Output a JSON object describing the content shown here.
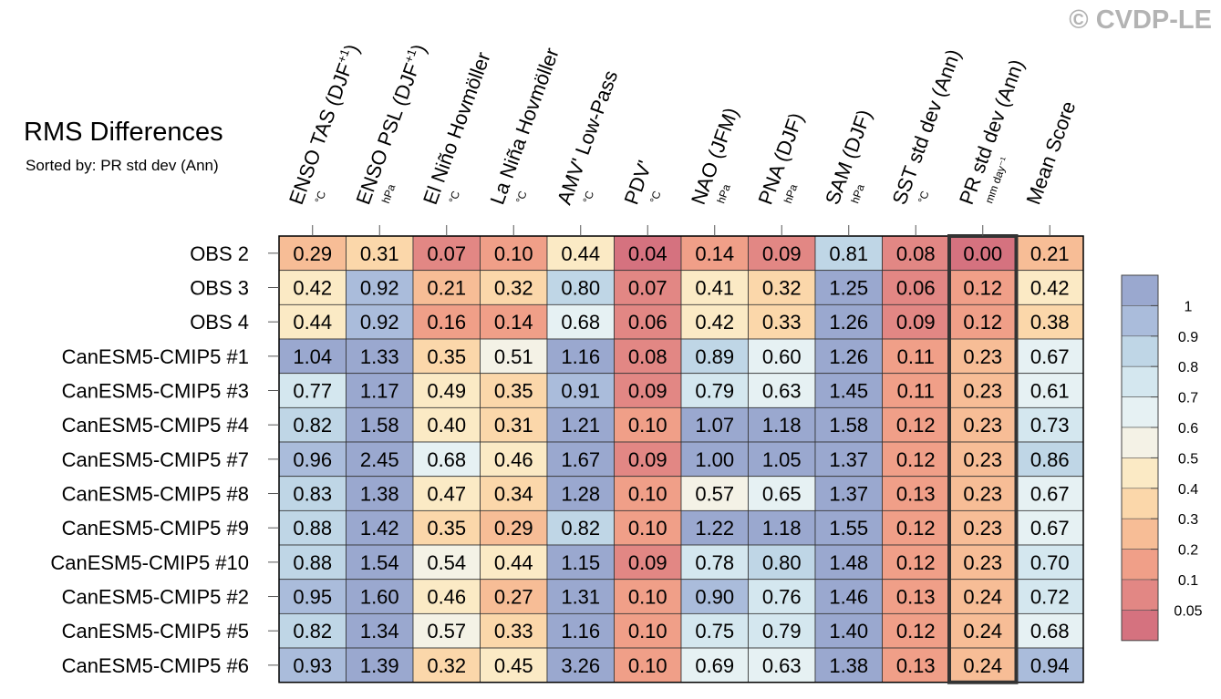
{
  "watermark": "© CVDP-LE",
  "chart_data": {
    "type": "heatmap",
    "title": "RMS Differences",
    "subtitle": "Sorted by: PR std dev (Ann)",
    "columns": [
      {
        "label": "ENSO TAS (DJF",
        "sup": "+1",
        "close": ")",
        "unit": "°C"
      },
      {
        "label": "ENSO PSL (DJF",
        "sup": "+1",
        "close": ")",
        "unit": "hPa"
      },
      {
        "label": "El Niño Hovmöller",
        "sup": "",
        "close": "",
        "unit": "°C"
      },
      {
        "label": "La Niña Hovmöller",
        "sup": "",
        "close": "",
        "unit": "°C"
      },
      {
        "label": "AMV' Low-Pass",
        "sup": "",
        "close": "",
        "unit": "°C"
      },
      {
        "label": "PDV'",
        "sup": "",
        "close": "",
        "unit": "°C"
      },
      {
        "label": "NAO (JFM)",
        "sup": "",
        "close": "",
        "unit": "hPa"
      },
      {
        "label": "PNA (DJF)",
        "sup": "",
        "close": "",
        "unit": "hPa"
      },
      {
        "label": "SAM (DJF)",
        "sup": "",
        "close": "",
        "unit": "hPa"
      },
      {
        "label": "SST std dev (Ann)",
        "sup": "",
        "close": "",
        "unit": "°C"
      },
      {
        "label": "PR std dev (Ann)",
        "sup": "",
        "close": "",
        "unit": "mm day⁻¹"
      },
      {
        "label": "Mean Score",
        "sup": "",
        "close": "",
        "unit": ""
      }
    ],
    "rows": [
      "OBS 2",
      "OBS 3",
      "OBS 4",
      "CanESM5-CMIP5 #1",
      "CanESM5-CMIP5 #3",
      "CanESM5-CMIP5 #4",
      "CanESM5-CMIP5 #7",
      "CanESM5-CMIP5 #8",
      "CanESM5-CMIP5 #9",
      "CanESM5-CMIP5 #10",
      "CanESM5-CMIP5 #2",
      "CanESM5-CMIP5 #5",
      "CanESM5-CMIP5 #6"
    ],
    "values": [
      [
        "0.29",
        "0.31",
        "0.07",
        "0.10",
        "0.44",
        "0.04",
        "0.14",
        "0.09",
        "0.81",
        "0.08",
        "0.00",
        "0.21"
      ],
      [
        "0.42",
        "0.92",
        "0.21",
        "0.32",
        "0.80",
        "0.07",
        "0.41",
        "0.32",
        "1.25",
        "0.06",
        "0.12",
        "0.42"
      ],
      [
        "0.44",
        "0.92",
        "0.16",
        "0.14",
        "0.68",
        "0.06",
        "0.42",
        "0.33",
        "1.26",
        "0.09",
        "0.12",
        "0.38"
      ],
      [
        "1.04",
        "1.33",
        "0.35",
        "0.51",
        "1.16",
        "0.08",
        "0.89",
        "0.60",
        "1.26",
        "0.11",
        "0.23",
        "0.67"
      ],
      [
        "0.77",
        "1.17",
        "0.49",
        "0.35",
        "0.91",
        "0.09",
        "0.79",
        "0.63",
        "1.45",
        "0.11",
        "0.23",
        "0.61"
      ],
      [
        "0.82",
        "1.58",
        "0.40",
        "0.31",
        "1.21",
        "0.10",
        "1.07",
        "1.18",
        "1.58",
        "0.12",
        "0.23",
        "0.73"
      ],
      [
        "0.96",
        "2.45",
        "0.68",
        "0.46",
        "1.67",
        "0.09",
        "1.00",
        "1.05",
        "1.37",
        "0.12",
        "0.23",
        "0.86"
      ],
      [
        "0.83",
        "1.38",
        "0.47",
        "0.34",
        "1.28",
        "0.10",
        "0.57",
        "0.65",
        "1.37",
        "0.13",
        "0.23",
        "0.67"
      ],
      [
        "0.88",
        "1.42",
        "0.35",
        "0.29",
        "0.82",
        "0.10",
        "1.22",
        "1.18",
        "1.55",
        "0.12",
        "0.23",
        "0.67"
      ],
      [
        "0.88",
        "1.54",
        "0.54",
        "0.44",
        "1.15",
        "0.09",
        "0.78",
        "0.80",
        "1.48",
        "0.12",
        "0.23",
        "0.70"
      ],
      [
        "0.95",
        "1.60",
        "0.46",
        "0.27",
        "1.31",
        "0.10",
        "0.90",
        "0.76",
        "1.46",
        "0.13",
        "0.24",
        "0.72"
      ],
      [
        "0.82",
        "1.34",
        "0.57",
        "0.33",
        "1.16",
        "0.10",
        "0.75",
        "0.79",
        "1.40",
        "0.12",
        "0.24",
        "0.68"
      ],
      [
        "0.93",
        "1.39",
        "0.32",
        "0.45",
        "3.26",
        "0.10",
        "0.69",
        "0.63",
        "1.38",
        "0.13",
        "0.24",
        "0.94"
      ]
    ],
    "highlighted_column": 10,
    "colorbar": {
      "labels": [
        "1",
        "0.9",
        "0.8",
        "0.7",
        "0.6",
        "0.5",
        "0.4",
        "0.3",
        "0.2",
        "0.1",
        "0.05"
      ],
      "boundaries": [
        1,
        0.9,
        0.8,
        0.7,
        0.6,
        0.5,
        0.4,
        0.3,
        0.2,
        0.1,
        0.05
      ],
      "colors": [
        "#9aa8cf",
        "#aabcdb",
        "#bfd6e6",
        "#d4e7ef",
        "#e6f1f3",
        "#f4f2e6",
        "#fbeac5",
        "#fbd7aa",
        "#f7bd96",
        "#f09f88",
        "#e28784",
        "#d5727f"
      ]
    }
  }
}
